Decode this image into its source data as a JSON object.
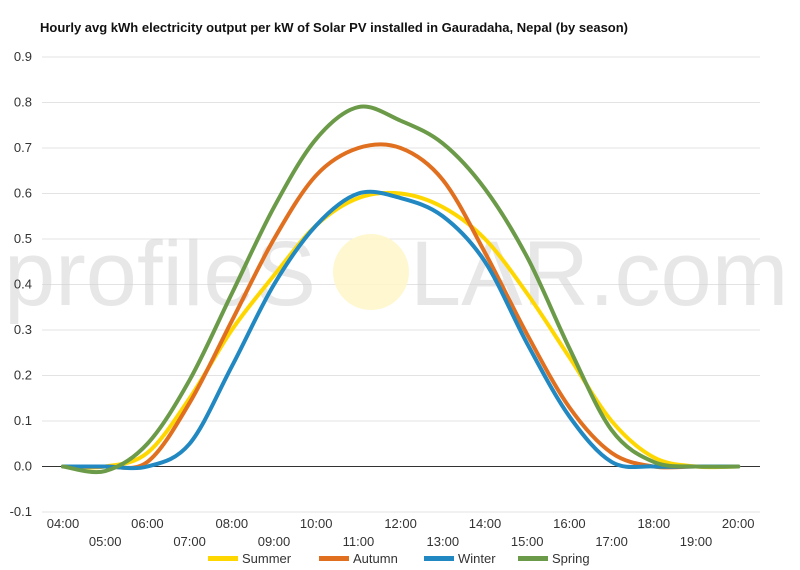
{
  "chart_data": {
    "type": "line",
    "title": "Hourly avg kWh electricity output per kW of Solar PV installed in Gauradaha, Nepal (by season)",
    "xlabel": "",
    "ylabel": "",
    "ylim": [
      -0.1,
      0.9
    ],
    "yticks": [
      "-0.1",
      "0.0",
      "0.1",
      "0.2",
      "0.3",
      "0.4",
      "0.5",
      "0.6",
      "0.7",
      "0.8",
      "0.9"
    ],
    "categories": [
      "04:00",
      "05:00",
      "06:00",
      "07:00",
      "08:00",
      "09:00",
      "10:00",
      "11:00",
      "12:00",
      "13:00",
      "14:00",
      "15:00",
      "16:00",
      "17:00",
      "18:00",
      "19:00",
      "20:00"
    ],
    "grid": true,
    "legend_position": "bottom",
    "series": [
      {
        "name": "Summer",
        "color": "#ffd700",
        "values": [
          0.0,
          0.0,
          0.03,
          0.15,
          0.3,
          0.42,
          0.53,
          0.59,
          0.6,
          0.57,
          0.5,
          0.38,
          0.24,
          0.1,
          0.02,
          0.0,
          0.0
        ]
      },
      {
        "name": "Autumn",
        "color": "#e07020",
        "values": [
          0.0,
          0.0,
          0.01,
          0.14,
          0.32,
          0.5,
          0.64,
          0.7,
          0.7,
          0.63,
          0.47,
          0.29,
          0.13,
          0.03,
          0.0,
          0.0,
          0.0
        ]
      },
      {
        "name": "Winter",
        "color": "#2188c1",
        "values": [
          0.0,
          0.0,
          0.0,
          0.05,
          0.22,
          0.4,
          0.53,
          0.6,
          0.59,
          0.55,
          0.45,
          0.27,
          0.11,
          0.01,
          0.0,
          0.0,
          0.0
        ]
      },
      {
        "name": "Spring",
        "color": "#6b9b48",
        "values": [
          0.0,
          -0.01,
          0.05,
          0.19,
          0.38,
          0.57,
          0.72,
          0.79,
          0.76,
          0.71,
          0.61,
          0.46,
          0.26,
          0.08,
          0.01,
          0.0,
          0.0
        ]
      }
    ]
  },
  "watermark": {
    "left": "profileS",
    "right": "LAR.com"
  }
}
